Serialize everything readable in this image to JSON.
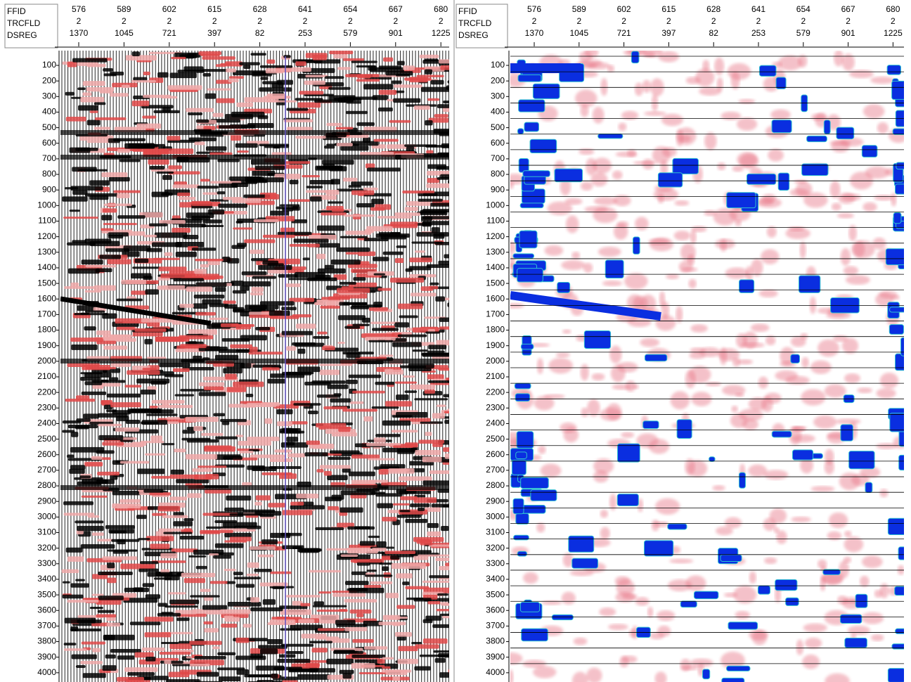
{
  "panels": [
    {
      "header": [
        "FFID",
        "TRCFLD",
        "DSREG"
      ],
      "columns": [
        {
          "ffid": 576,
          "trcfld": 2,
          "dsreg": 1370
        },
        {
          "ffid": 589,
          "trcfld": 2,
          "dsreg": 1045
        },
        {
          "ffid": 602,
          "trcfld": 2,
          "dsreg": 721
        },
        {
          "ffid": 615,
          "trcfld": 2,
          "dsreg": 397
        },
        {
          "ffid": 628,
          "trcfld": 2,
          "dsreg": 82
        },
        {
          "ffid": 641,
          "trcfld": 2,
          "dsreg": 253
        },
        {
          "ffid": 654,
          "trcfld": 2,
          "dsreg": 579
        },
        {
          "ffid": 667,
          "trcfld": 2,
          "dsreg": 901
        },
        {
          "ffid": 680,
          "trcfld": 2,
          "dsreg": 1225
        }
      ],
      "times": [
        100,
        200,
        300,
        400,
        500,
        600,
        700,
        800,
        900,
        1000,
        1100,
        1200,
        1300,
        1400,
        1500,
        1600,
        1700,
        1800,
        1900,
        2000,
        2100,
        2200,
        2300,
        2400,
        2500,
        2600,
        2700,
        2800,
        2900,
        3000,
        3100,
        3200,
        3300,
        3400,
        3500,
        3600,
        3700,
        3800,
        3900,
        4000
      ]
    },
    {
      "header": [
        "FFID",
        "TRCFLD",
        "DSREG"
      ],
      "columns": [
        {
          "ffid": 576,
          "trcfld": 2,
          "dsreg": 1370
        },
        {
          "ffid": 589,
          "trcfld": 2,
          "dsreg": 1045
        },
        {
          "ffid": 602,
          "trcfld": 2,
          "dsreg": 721
        },
        {
          "ffid": 615,
          "trcfld": 2,
          "dsreg": 397
        },
        {
          "ffid": 628,
          "trcfld": 2,
          "dsreg": 82
        },
        {
          "ffid": 641,
          "trcfld": 2,
          "dsreg": 253
        },
        {
          "ffid": 654,
          "trcfld": 2,
          "dsreg": 579
        },
        {
          "ffid": 667,
          "trcfld": 2,
          "dsreg": 901
        },
        {
          "ffid": 680,
          "trcfld": 2,
          "dsreg": 1225
        }
      ],
      "times": [
        100,
        200,
        300,
        400,
        500,
        600,
        700,
        800,
        900,
        1000,
        1100,
        1200,
        1300,
        1400,
        1500,
        1600,
        1700,
        1800,
        1900,
        2000,
        2100,
        2200,
        2300,
        2400,
        2500,
        2600,
        2700,
        2800,
        2900,
        3000,
        3100,
        3200,
        3300,
        3400,
        3500,
        3600,
        3700,
        3800,
        3900,
        4000
      ]
    }
  ]
}
